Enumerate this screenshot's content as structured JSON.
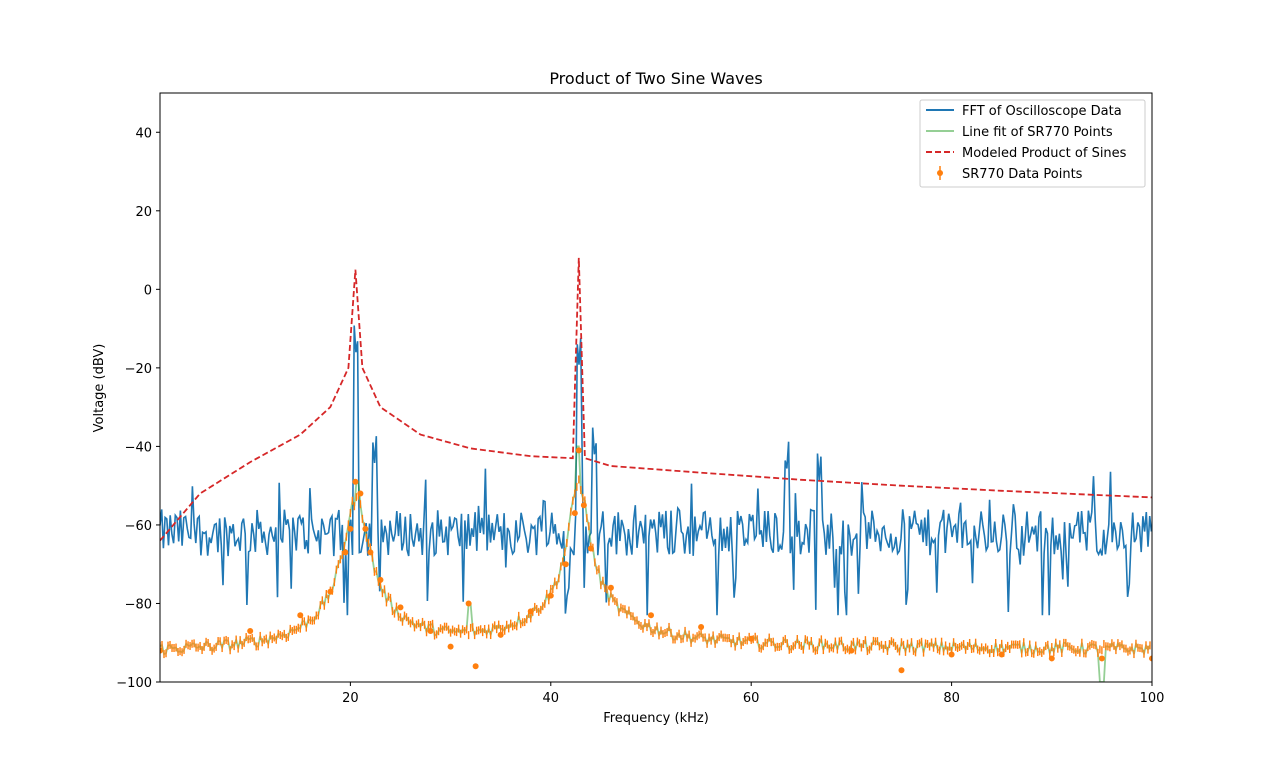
{
  "chart_data": {
    "type": "line",
    "title": "Product of Two Sine Waves",
    "xlabel": "Frequency (kHz)",
    "ylabel": "Voltage (dBV)",
    "xlim": [
      1,
      100
    ],
    "ylim": [
      -100,
      50
    ],
    "x_ticks": [
      20,
      40,
      60,
      80,
      100
    ],
    "y_ticks": [
      -100,
      -80,
      -60,
      -40,
      -20,
      0,
      20,
      40
    ],
    "grid": false,
    "legend_position": "top-right",
    "colors": {
      "fft": "#1f77b4",
      "line_fit": "#2ca02c",
      "model": "#d62728",
      "sr770": "#ff7f0e"
    },
    "series": [
      {
        "name": "FFT of Oscilloscope Data",
        "style": "solid",
        "noise_floor_level": -60,
        "noise_range": [
          -83,
          -45
        ],
        "peaks": [
          {
            "x": 20.6,
            "y": -18
          },
          {
            "x": 22.4,
            "y": -45
          },
          {
            "x": 42.8,
            "y": -20
          },
          {
            "x": 44.4,
            "y": -44
          },
          {
            "x": 63.5,
            "y": -48
          },
          {
            "x": 66.8,
            "y": -49
          }
        ]
      },
      {
        "name": "Line fit of SR770 Points",
        "style": "solid",
        "peaks": [
          {
            "x": 20.6,
            "y": -49
          },
          {
            "x": 31.8,
            "y": -80
          },
          {
            "x": 42.8,
            "y": -40
          }
        ],
        "dips": [
          {
            "x": 95,
            "y": -100
          }
        ]
      },
      {
        "name": "Modeled Product of Sines",
        "style": "dashed",
        "points": [
          [
            1,
            -64
          ],
          [
            5,
            -52
          ],
          [
            10,
            -44
          ],
          [
            15,
            -37
          ],
          [
            18,
            -30
          ],
          [
            19.8,
            -20
          ],
          [
            20.5,
            5
          ],
          [
            21.2,
            -20
          ],
          [
            23,
            -30
          ],
          [
            27,
            -37
          ],
          [
            32,
            -40.5
          ],
          [
            38,
            -42.5
          ],
          [
            42.2,
            -43
          ],
          [
            42.8,
            8
          ],
          [
            43.4,
            -43
          ],
          [
            46,
            -45
          ],
          [
            55,
            -46.7
          ],
          [
            65,
            -48.5
          ],
          [
            75,
            -50
          ],
          [
            85,
            -51.3
          ],
          [
            100,
            -53
          ]
        ]
      },
      {
        "name": "SR770 Data Points",
        "style": "errorbar",
        "points": [
          [
            1,
            -92
          ],
          [
            10,
            -87
          ],
          [
            15,
            -83
          ],
          [
            18,
            -77
          ],
          [
            19.5,
            -67
          ],
          [
            20,
            -61
          ],
          [
            20.5,
            -49
          ],
          [
            21,
            -52
          ],
          [
            21.5,
            -61
          ],
          [
            22,
            -67
          ],
          [
            23,
            -74
          ],
          [
            25,
            -81
          ],
          [
            28,
            -87
          ],
          [
            30,
            -91
          ],
          [
            31.8,
            -80
          ],
          [
            32.5,
            -96
          ],
          [
            35,
            -88
          ],
          [
            38,
            -82
          ],
          [
            40,
            -78
          ],
          [
            41.5,
            -70
          ],
          [
            42.4,
            -57
          ],
          [
            42.8,
            -41
          ],
          [
            43.3,
            -55
          ],
          [
            44,
            -66
          ],
          [
            46,
            -76
          ],
          [
            50,
            -83
          ],
          [
            55,
            -86
          ],
          [
            60,
            -89
          ],
          [
            70,
            -92
          ],
          [
            75,
            -97
          ],
          [
            80,
            -93
          ],
          [
            85,
            -93
          ],
          [
            90,
            -94
          ],
          [
            95,
            -94
          ],
          [
            100,
            -94
          ]
        ]
      }
    ]
  }
}
